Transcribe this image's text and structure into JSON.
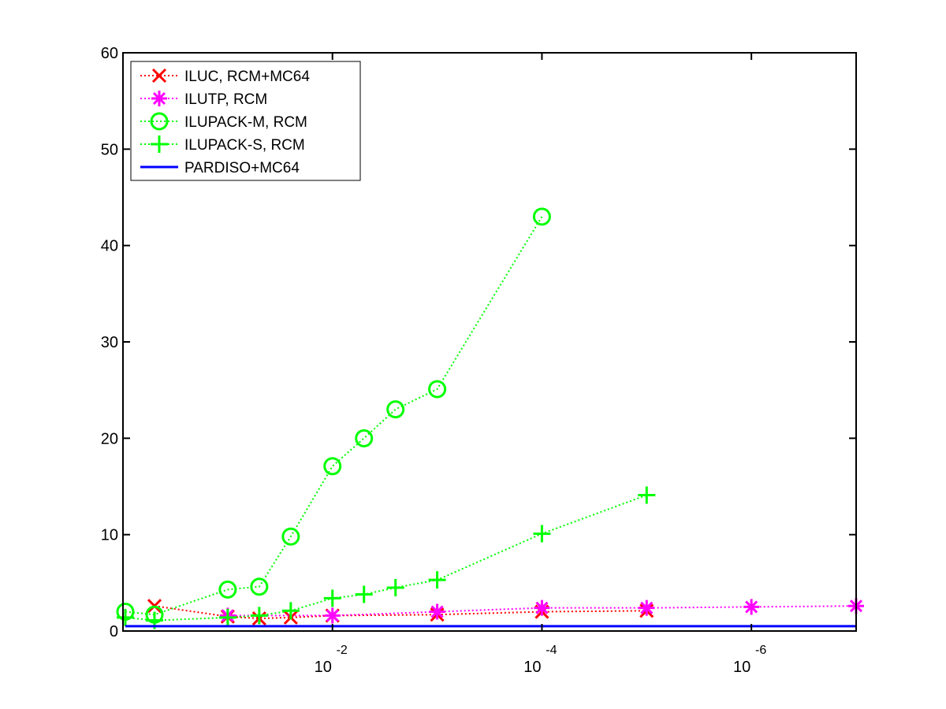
{
  "chart_data": {
    "type": "line",
    "title": "",
    "xlabel": "",
    "ylabel": "",
    "x_scale": "log",
    "x_reversed": true,
    "xlim": [
      1,
      1e-07
    ],
    "ylim": [
      0,
      60
    ],
    "y_ticks": [
      0,
      10,
      20,
      30,
      40,
      50,
      60
    ],
    "x_ticks": [
      {
        "value": 0.01,
        "base": "10",
        "exp": "-2"
      },
      {
        "value": 0.0001,
        "base": "10",
        "exp": "-4"
      },
      {
        "value": 1e-06,
        "base": "10",
        "exp": "-6"
      }
    ],
    "grid": false,
    "legend_position": "top-left",
    "series": [
      {
        "name": "ILUC, RCM+MC64",
        "color": "#ff0000",
        "marker": "x",
        "linestyle": "dotted",
        "points": [
          [
            0.5,
            2.6
          ],
          [
            0.1,
            1.5
          ],
          [
            0.05,
            1.3
          ],
          [
            0.025,
            1.4
          ],
          [
            0.01,
            1.6
          ],
          [
            0.001,
            1.7
          ],
          [
            0.0001,
            2.0
          ],
          [
            1e-05,
            2.1
          ]
        ]
      },
      {
        "name": "ILUTP, RCM",
        "color": "#ff00ff",
        "marker": "asterisk",
        "linestyle": "dotted",
        "points": [
          [
            0.1,
            1.6
          ],
          [
            0.01,
            1.6
          ],
          [
            0.001,
            2.0
          ],
          [
            0.0001,
            2.4
          ],
          [
            1e-05,
            2.4
          ],
          [
            1e-06,
            2.5
          ],
          [
            1e-07,
            2.6
          ]
        ]
      },
      {
        "name": "ILUPACK-M, RCM",
        "color": "#00ff00",
        "marker": "circle",
        "linestyle": "dotted",
        "points": [
          [
            0.95,
            2.0
          ],
          [
            0.5,
            1.7
          ],
          [
            0.1,
            4.3
          ],
          [
            0.05,
            4.6
          ],
          [
            0.025,
            9.8
          ],
          [
            0.01,
            17.1
          ],
          [
            0.005,
            20.0
          ],
          [
            0.0025,
            23.0
          ],
          [
            0.001,
            25.1
          ],
          [
            0.0001,
            43.0
          ]
        ]
      },
      {
        "name": "ILUPACK-S, RCM",
        "color": "#00ff00",
        "marker": "plus",
        "linestyle": "dotted",
        "points": [
          [
            0.95,
            1.4
          ],
          [
            0.5,
            1.1
          ],
          [
            0.1,
            1.4
          ],
          [
            0.05,
            1.6
          ],
          [
            0.025,
            2.1
          ],
          [
            0.01,
            3.4
          ],
          [
            0.005,
            3.8
          ],
          [
            0.0025,
            4.5
          ],
          [
            0.001,
            5.3
          ],
          [
            0.0001,
            10.1
          ],
          [
            1e-05,
            14.1
          ]
        ]
      },
      {
        "name": "PARDISO+MC64",
        "color": "#0000ff",
        "marker": "none",
        "linestyle": "solid",
        "points": [
          [
            0.95,
            0.5
          ],
          [
            1e-07,
            0.5
          ]
        ]
      }
    ]
  }
}
